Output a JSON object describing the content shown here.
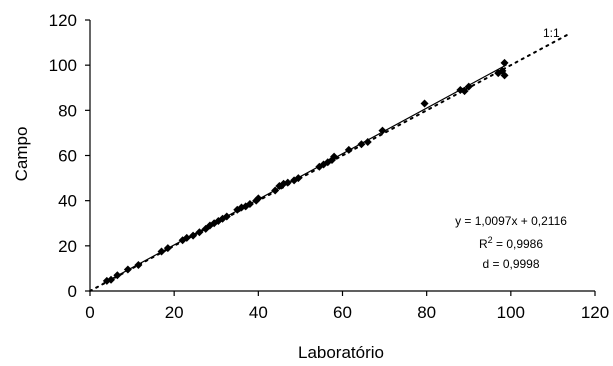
{
  "chart_data": {
    "type": "scatter",
    "xlabel": "Laboratório",
    "ylabel": "Campo",
    "xlim": [
      0,
      120
    ],
    "ylim": [
      0,
      120
    ],
    "xticks": [
      "0",
      "20",
      "40",
      "60",
      "80",
      "100",
      "120"
    ],
    "yticks": [
      "0",
      "20",
      "40",
      "60",
      "80",
      "100",
      "120"
    ],
    "grid": false,
    "identity_label": "1:1",
    "regression": {
      "slope": 1.0097,
      "intercept": 0.2116
    },
    "stats": {
      "equation": "y = 1,0097x + 0,2116",
      "r2_prefix": "R",
      "r2_sup": "2",
      "r2_value": " = 0,9986",
      "d": "d = 0,9998"
    },
    "series": [
      {
        "points": [
          [
            4,
            4.5
          ],
          [
            5,
            5
          ],
          [
            6.5,
            7
          ],
          [
            9,
            9.5
          ],
          [
            11.5,
            11.5
          ],
          [
            17,
            17.5
          ],
          [
            18.5,
            19
          ],
          [
            22,
            22.5
          ],
          [
            23,
            23.5
          ],
          [
            24.5,
            24.5
          ],
          [
            26,
            26
          ],
          [
            27.5,
            27.5
          ],
          [
            28.5,
            29
          ],
          [
            29.5,
            30
          ],
          [
            30.5,
            31
          ],
          [
            31.5,
            32
          ],
          [
            32.5,
            33
          ],
          [
            35,
            36
          ],
          [
            36,
            37
          ],
          [
            37,
            37.5
          ],
          [
            38,
            38.5
          ],
          [
            39.5,
            40
          ],
          [
            40,
            41
          ],
          [
            44,
            44.5
          ],
          [
            45,
            46.5
          ],
          [
            46,
            47.5
          ],
          [
            47,
            48
          ],
          [
            48.5,
            49
          ],
          [
            49.5,
            50
          ],
          [
            54.5,
            55
          ],
          [
            55.5,
            56
          ],
          [
            56.5,
            57
          ],
          [
            57.5,
            58
          ],
          [
            58,
            59.5
          ],
          [
            61.5,
            62.5
          ],
          [
            64.5,
            65
          ],
          [
            66,
            66
          ],
          [
            69.5,
            71
          ],
          [
            79.5,
            83
          ],
          [
            88,
            89
          ],
          [
            89,
            88.5
          ],
          [
            90,
            90.5
          ],
          [
            97,
            96.5
          ],
          [
            98,
            97.5
          ],
          [
            98.5,
            101
          ],
          [
            98.5,
            95.5
          ]
        ]
      }
    ]
  }
}
